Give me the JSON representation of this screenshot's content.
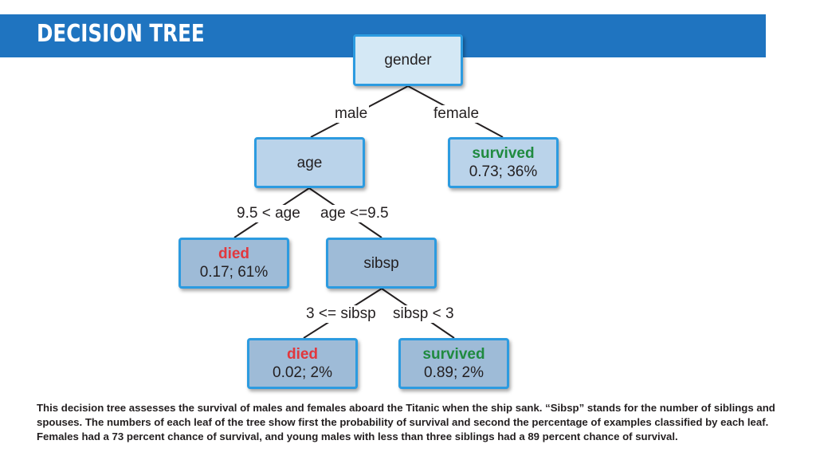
{
  "header": {
    "title": "DECISION TREE"
  },
  "tree": {
    "root": {
      "label": "gender"
    },
    "age": {
      "label": "age"
    },
    "female_leaf": {
      "verdict": "survived",
      "stats": "0.73;  36%"
    },
    "young_leaf": {
      "verdict": "died",
      "stats": "0.17;  61%"
    },
    "sibsp": {
      "label": "sibsp"
    },
    "many_sib_leaf": {
      "verdict": "died",
      "stats": "0.02;  2%"
    },
    "few_sib_leaf": {
      "verdict": "survived",
      "stats": "0.89;  2%"
    },
    "edges": {
      "male": "male",
      "female": "female",
      "age_gt": "9.5 < age",
      "age_le": "age <=9.5",
      "sib_ge": "3 <= sibsp",
      "sib_lt": "sibsp < 3"
    },
    "colors": {
      "survived": "#1f8a3f",
      "died": "#e2373d",
      "border": "#2c9be0"
    }
  },
  "caption": "This decision tree assesses the survival of males and females aboard the Titanic when the ship sank. “Sibsp” stands for the number of siblings and spouses. The numbers of each leaf of the tree show first the probability of survival and second the percentage of examples classified by each leaf. Females had a 73 percent chance of survival, and young males with less than three siblings had a 89 percent chance of survival."
}
